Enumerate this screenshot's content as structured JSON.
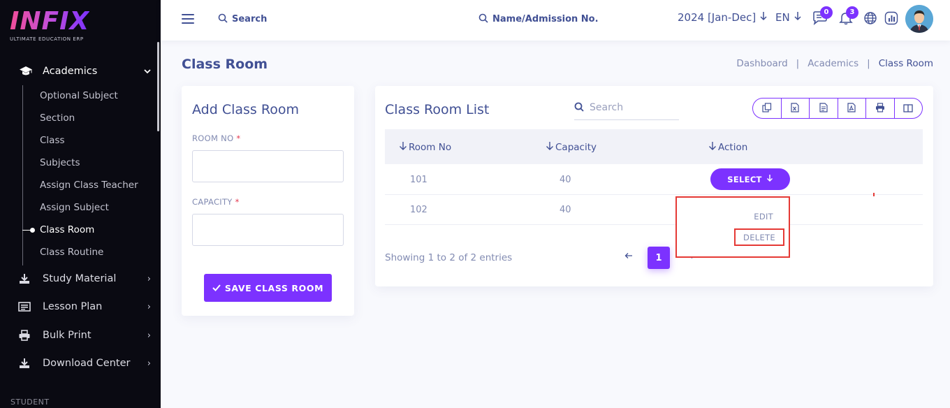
{
  "brand": {
    "logo_text": "INFIX",
    "tagline": "ULTIMATE EDUCATION ERP"
  },
  "sidebar": {
    "section_head": {
      "label": "Academics",
      "icon": "graduation-cap-icon"
    },
    "sub_items": [
      {
        "label": "Optional Subject"
      },
      {
        "label": "Section"
      },
      {
        "label": "Class"
      },
      {
        "label": "Subjects"
      },
      {
        "label": "Assign Class Teacher"
      },
      {
        "label": "Assign Subject"
      },
      {
        "label": "Class Room",
        "active": true
      },
      {
        "label": "Class Routine"
      }
    ],
    "menu": [
      {
        "label": "Study Material",
        "icon": "download-icon"
      },
      {
        "label": "Lesson Plan",
        "icon": "list-icon"
      },
      {
        "label": "Bulk Print",
        "icon": "printer-icon"
      },
      {
        "label": "Download Center",
        "icon": "download-icon"
      }
    ],
    "section_label": "STUDENT"
  },
  "header": {
    "search_label": "Search",
    "student_search_label": "Name/Admission No.",
    "year": "2024 [Jan-Dec]",
    "language": "EN",
    "messages_count": "0",
    "notifications_count": "3"
  },
  "page": {
    "title": "Class Room",
    "breadcrumb": [
      "Dashboard",
      "Academics",
      "Class Room"
    ]
  },
  "add_form": {
    "title": "Add Class Room",
    "room_no_label": "ROOM NO",
    "capacity_label": "CAPACITY",
    "required_mark": "*",
    "save_label": "SAVE CLASS ROOM"
  },
  "list": {
    "title": "Class Room List",
    "search_placeholder": "Search",
    "columns": [
      "Room No",
      "Capacity",
      "Action"
    ],
    "rows": [
      {
        "room_no": "101",
        "capacity": "40"
      },
      {
        "room_no": "102",
        "capacity": "40"
      }
    ],
    "select_label": "SELECT",
    "dropdown": {
      "edit": "EDIT",
      "delete": "DELETE"
    },
    "showing": "Showing 1 to 2 of 2 entries",
    "current_page": "1"
  },
  "colors": {
    "accent": "#7c32ff",
    "sidebar_bg": "#0a0a12",
    "text_primary": "#415094",
    "highlight": "#e53935"
  }
}
